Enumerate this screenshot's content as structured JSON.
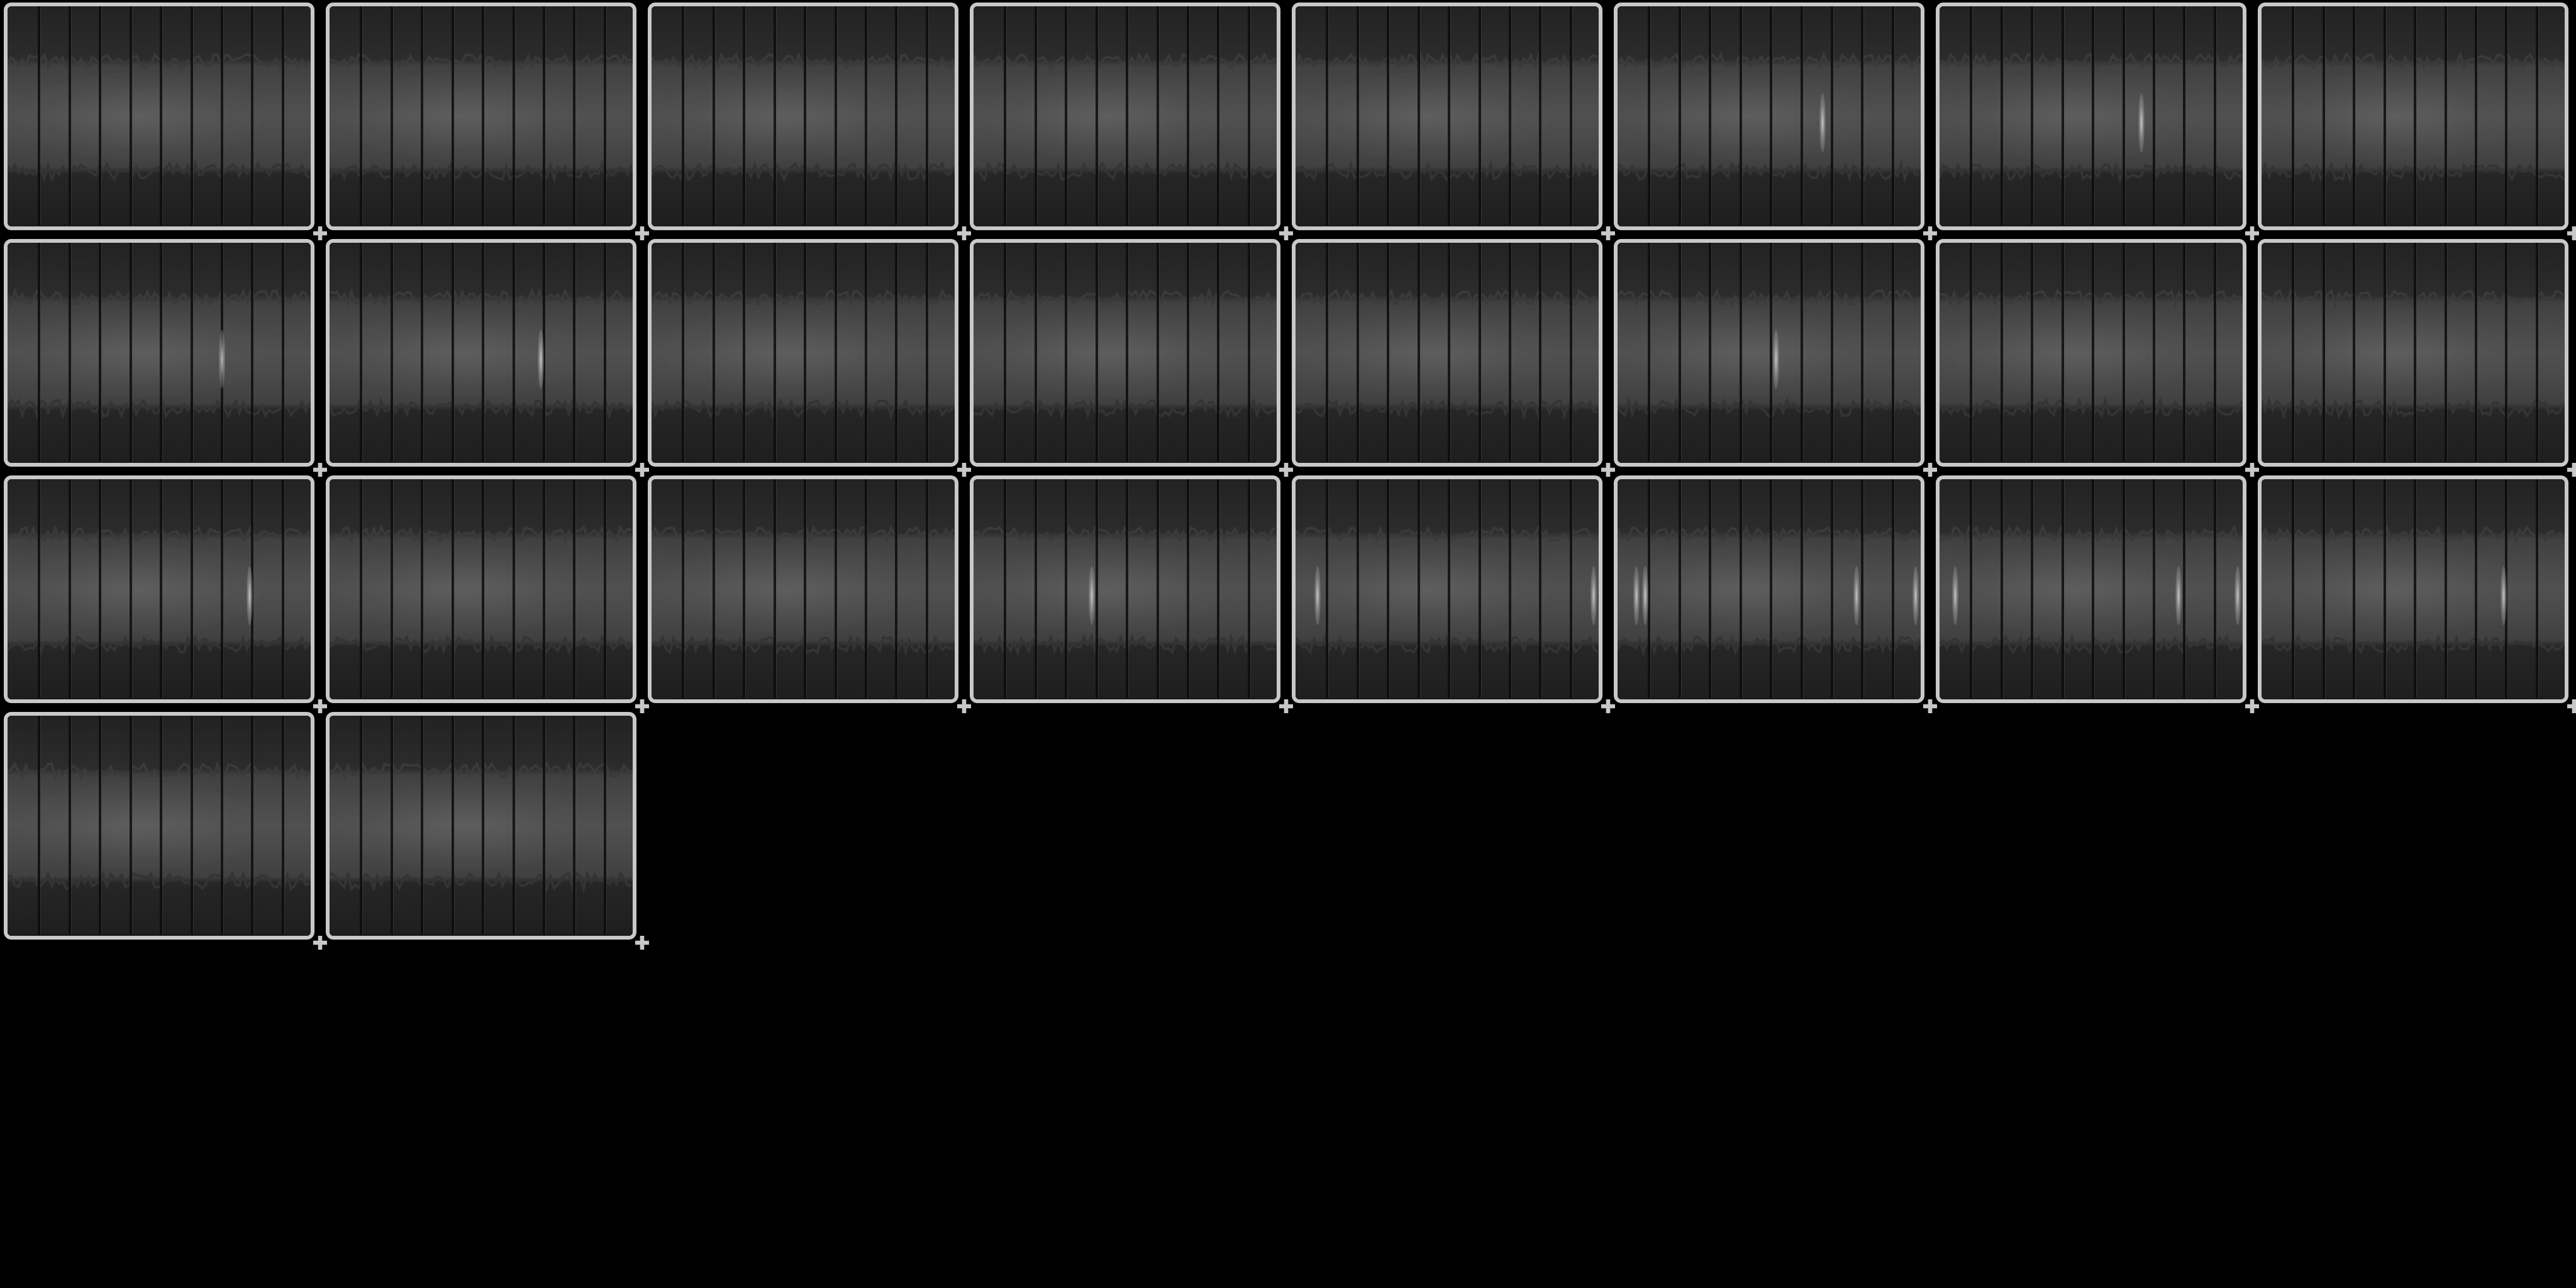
{
  "colors": {
    "background": "#000000",
    "frame": "#c8c8c8",
    "panel_dark": "#1e1e1e",
    "panel_mid": "#505050",
    "hotspot": "#d2d2d2"
  },
  "grid": {
    "columns": 8,
    "rows": 4,
    "panel_count": 26
  },
  "panels": [
    {
      "hotspots": []
    },
    {
      "hotspots": []
    },
    {
      "hotspots": []
    },
    {
      "hotspots": []
    },
    {
      "hotspots": []
    },
    {
      "hotspots": [
        0.66
      ]
    },
    {
      "hotspots": [
        0.65
      ]
    },
    {
      "hotspots": []
    },
    {
      "hotspots": [
        0.69
      ]
    },
    {
      "hotspots": [
        0.68
      ]
    },
    {
      "hotspots": []
    },
    {
      "hotspots": []
    },
    {
      "hotspots": []
    },
    {
      "hotspots": [
        0.51
      ]
    },
    {
      "hotspots": []
    },
    {
      "hotspots": []
    },
    {
      "hotspots": [
        0.78
      ]
    },
    {
      "hotspots": []
    },
    {
      "hotspots": []
    },
    {
      "hotspots": [
        0.38
      ]
    },
    {
      "hotspots": [
        0.07,
        0.96
      ]
    },
    {
      "hotspots": [
        0.06,
        0.09,
        0.77,
        0.96
      ]
    },
    {
      "hotspots": [
        0.05,
        0.77,
        0.96
      ]
    },
    {
      "hotspots": [
        0.78
      ]
    },
    {
      "hotspots": []
    },
    {
      "hotspots": []
    }
  ]
}
